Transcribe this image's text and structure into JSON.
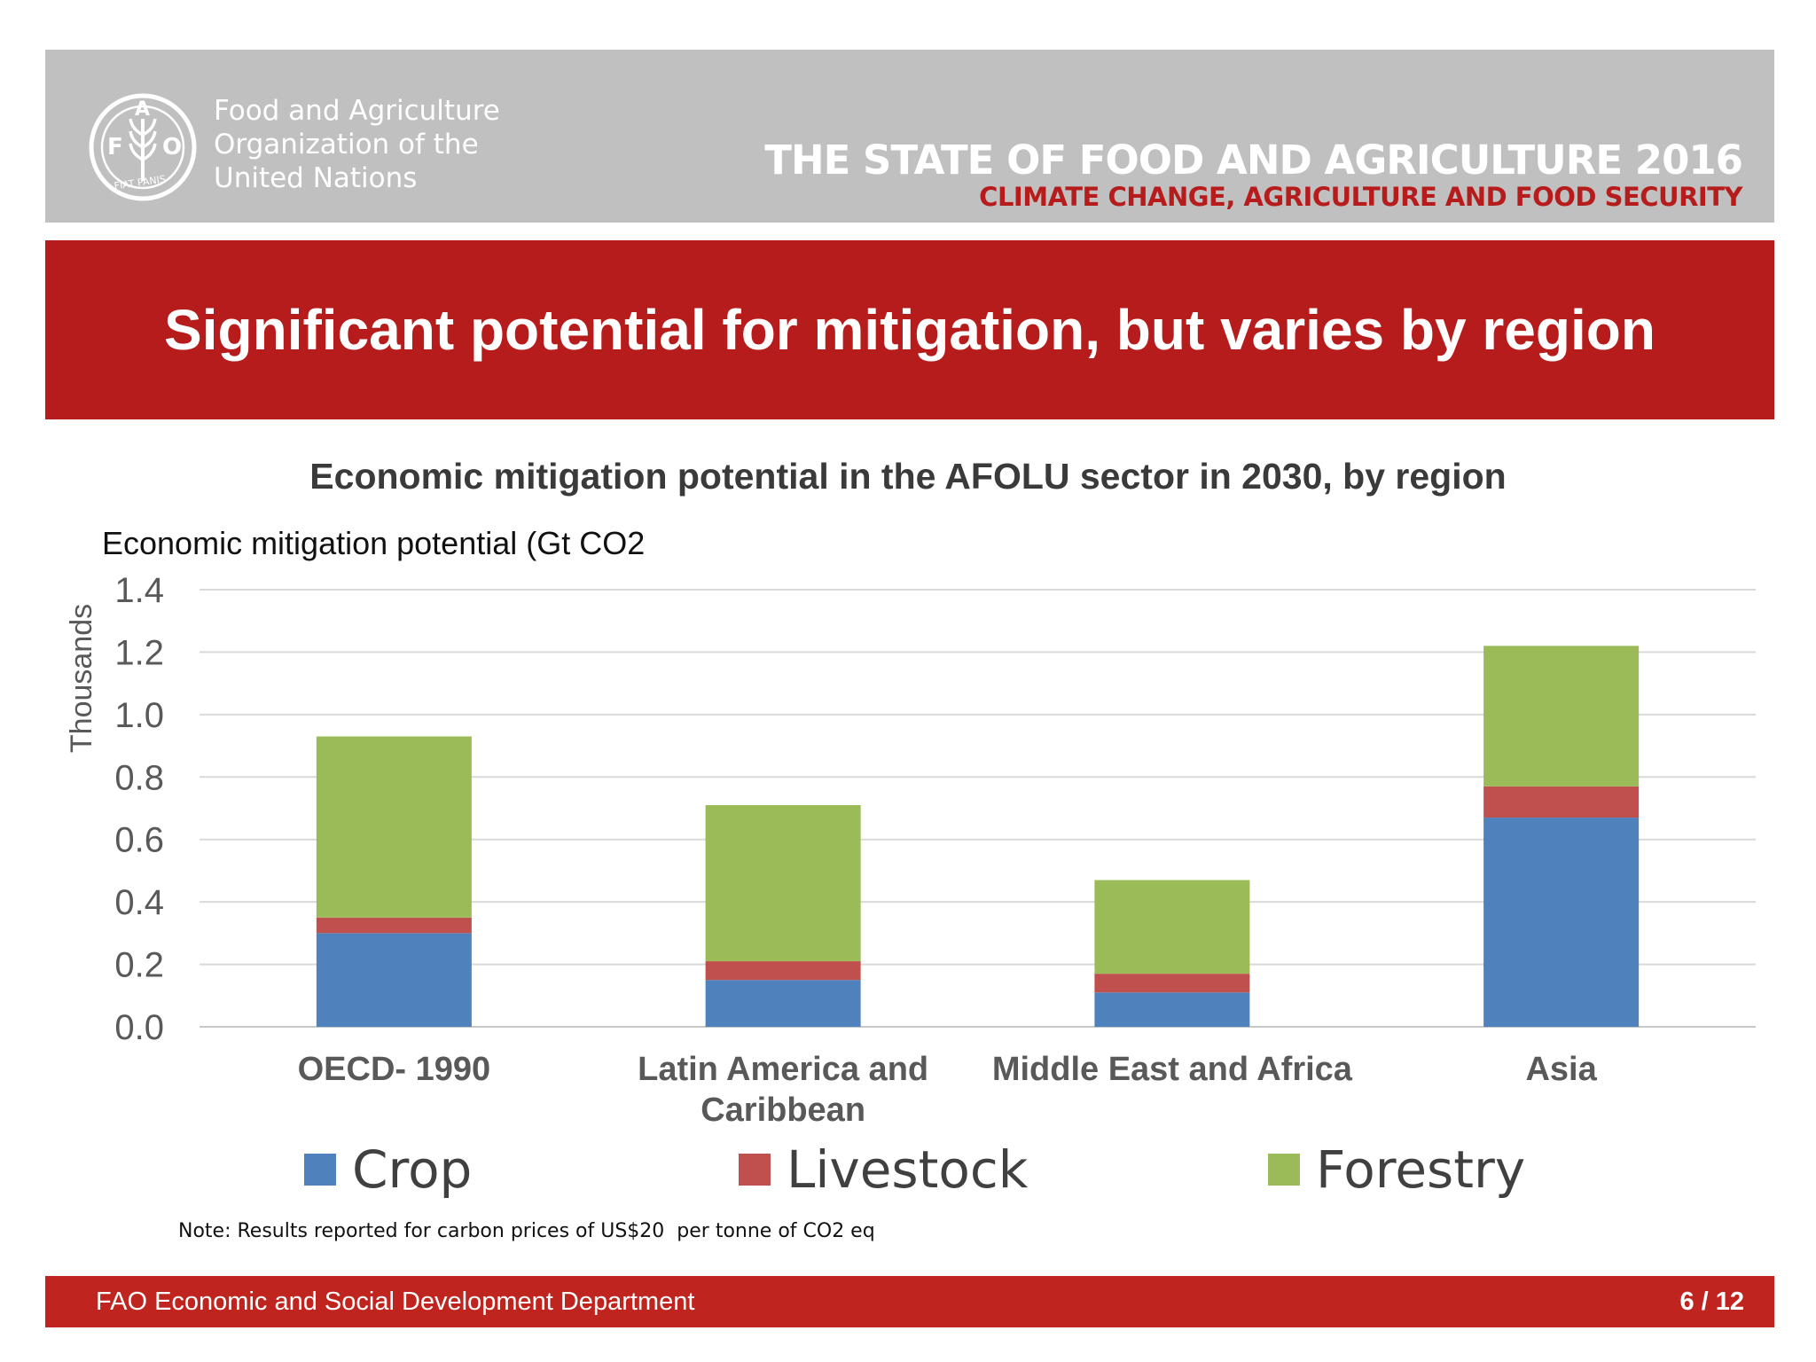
{
  "header": {
    "org_lines": [
      "Food and Agriculture",
      "Organization of the",
      "United Nations"
    ],
    "logo_letters": {
      "f": "F",
      "a": "A",
      "o": "O"
    },
    "logo_motto": "FIAT PANIS",
    "report_title": "THE STATE OF FOOD AND AGRICULTURE 2016",
    "report_subtitle": "CLIMATE CHANGE, AGRICULTURE AND FOOD SECURITY"
  },
  "slide": {
    "title": "Significant potential for mitigation, but varies by region"
  },
  "chart_data": {
    "type": "bar",
    "stacked": true,
    "title": "Economic mitigation potential in the AFOLU sector in 2030, by region",
    "ylabel": "Economic mitigation potential (Gt CO2",
    "ylabel_units": "Thousands",
    "xlabel": "",
    "ylim": [
      0,
      1.4
    ],
    "yticks": [
      "0.0",
      "0.2",
      "0.4",
      "0.6",
      "0.8",
      "1.0",
      "1.2",
      "1.4"
    ],
    "grid": true,
    "legend_position": "bottom",
    "categories": [
      [
        "OECD- 1990"
      ],
      [
        "Latin America and",
        "Caribbean"
      ],
      [
        "Middle East and Africa"
      ],
      [
        "Asia"
      ]
    ],
    "series": [
      {
        "name": "Crop",
        "color": "#4f81bd",
        "values": [
          0.3,
          0.15,
          0.11,
          0.67
        ]
      },
      {
        "name": "Livestock",
        "color": "#c0504d",
        "values": [
          0.05,
          0.06,
          0.06,
          0.1
        ]
      },
      {
        "name": "Forestry",
        "color": "#9bbb59",
        "values": [
          0.58,
          0.5,
          0.3,
          0.45
        ]
      }
    ]
  },
  "note": "Note: Results reported for carbon prices of US$20  per tonne of CO2 eq",
  "footer": {
    "department": "FAO Economic and Social Development Department",
    "page": "6 / 12"
  },
  "colors": {
    "header_gray": "#c0c0c0",
    "title_red": "#b71c1c",
    "footer_red": "#c0241e"
  }
}
